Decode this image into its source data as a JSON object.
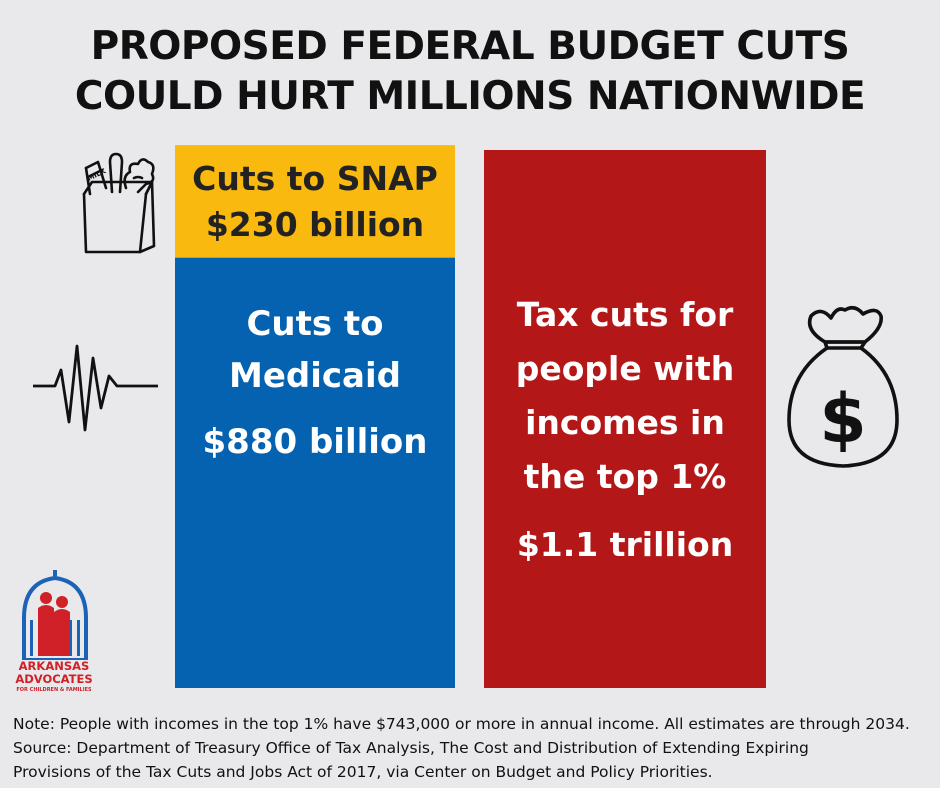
{
  "title": {
    "line1": "PROPOSED FEDERAL BUDGET CUTS",
    "line2": "COULD HURT MILLIONS NATIONWIDE"
  },
  "colors": {
    "snap": "#f9b90f",
    "medicaid": "#0462b0",
    "tax": "#b41717",
    "background": "#e9e9eb"
  },
  "chart_data": {
    "type": "bar",
    "unit": "billion dollars",
    "bars": [
      {
        "id": "medicaid",
        "column": 0,
        "stack_order": 0,
        "value": 880,
        "label_line1": "Cuts to",
        "label_line2": "Medicaid",
        "amount_label": "$880 billion"
      },
      {
        "id": "snap",
        "column": 0,
        "stack_order": 1,
        "value": 230,
        "label_line1": "Cuts to SNAP",
        "amount_label": "$230 billion"
      },
      {
        "id": "tax",
        "column": 1,
        "stack_order": 0,
        "value": 1100,
        "label_lines": [
          "Tax cuts for",
          "people with",
          "incomes in",
          "the top 1%"
        ],
        "amount_label": "$1.1 trillion"
      }
    ]
  },
  "icons": {
    "grocery": "grocery-bag-icon",
    "heartbeat": "heartbeat-icon",
    "money": "money-bag-icon",
    "logo": "arkansas-advocates-logo"
  },
  "logo": {
    "line1": "ARKANSAS",
    "line2": "ADVOCATES",
    "line3": "FOR CHILDREN & FAMILIES"
  },
  "notes": {
    "line1": "Note: People with incomes in the top 1% have $743,000 or more in annual income. All estimates are through 2034.",
    "line2": "Source: Department of Treasury Office of Tax Analysis, The Cost and Distribution of Extending Expiring",
    "line3": "Provisions of the Tax Cuts and Jobs Act of 2017, via Center on Budget and Policy Priorities."
  }
}
